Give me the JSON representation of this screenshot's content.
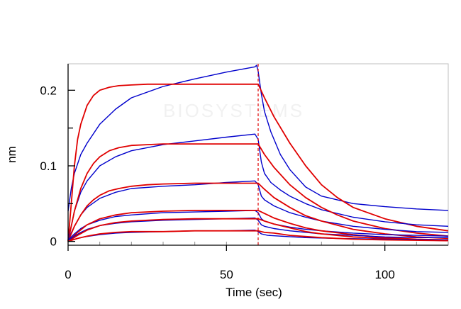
{
  "watermark": "BIOSYSTEMS",
  "chart_data": {
    "type": "line",
    "title": "",
    "xlabel": "Time (sec)",
    "ylabel": "nm",
    "xlim": [
      0,
      120
    ],
    "ylim": [
      -0.005,
      0.235
    ],
    "x_ticks": [
      0,
      50,
      100
    ],
    "x_tick_labels": [
      "0",
      "50",
      "100"
    ],
    "y_ticks": [
      0,
      0.1,
      0.2
    ],
    "y_tick_labels": [
      "0",
      "0.1",
      "0.2"
    ],
    "grid": false,
    "legend": "none",
    "dissociation_start": 60,
    "colors": {
      "measured": "#0000cc",
      "fit": "#e00000",
      "axis": "#000000",
      "frame": "#bfbfbf",
      "grid_ticks": "#8c8c8c"
    },
    "series": [
      {
        "style": "measured",
        "x": [
          0,
          1,
          2,
          4,
          6,
          10,
          15,
          20,
          30,
          40,
          50,
          59,
          59.5,
          60,
          61,
          62,
          64,
          67,
          70,
          75,
          80,
          90,
          100,
          110,
          120
        ],
        "y": [
          0.04,
          0.07,
          0.09,
          0.115,
          0.13,
          0.155,
          0.175,
          0.19,
          0.205,
          0.215,
          0.224,
          0.231,
          0.233,
          0.225,
          0.195,
          0.172,
          0.145,
          0.115,
          0.095,
          0.072,
          0.06,
          0.05,
          0.046,
          0.043,
          0.041
        ]
      },
      {
        "style": "fit",
        "x": [
          0,
          1,
          2,
          3,
          4,
          6,
          8,
          10,
          13,
          16,
          20,
          25,
          30,
          40,
          50,
          60,
          62,
          65,
          70,
          75,
          80,
          85,
          90,
          100,
          110,
          120
        ],
        "y": [
          0,
          0.05,
          0.1,
          0.135,
          0.155,
          0.18,
          0.193,
          0.2,
          0.204,
          0.206,
          0.207,
          0.208,
          0.208,
          0.208,
          0.208,
          0.208,
          0.19,
          0.165,
          0.13,
          0.1,
          0.075,
          0.058,
          0.045,
          0.03,
          0.02,
          0.014
        ]
      },
      {
        "style": "measured",
        "x": [
          0,
          1,
          2,
          4,
          6,
          10,
          15,
          20,
          30,
          40,
          50,
          59,
          60,
          61,
          62,
          64,
          67,
          70,
          75,
          80,
          90,
          100,
          110,
          120
        ],
        "y": [
          0.005,
          0.02,
          0.04,
          0.065,
          0.08,
          0.1,
          0.112,
          0.12,
          0.128,
          0.133,
          0.138,
          0.142,
          0.135,
          0.105,
          0.09,
          0.078,
          0.068,
          0.06,
          0.05,
          0.042,
          0.032,
          0.026,
          0.022,
          0.02
        ]
      },
      {
        "style": "fit",
        "x": [
          0,
          2,
          4,
          6,
          8,
          10,
          13,
          16,
          20,
          25,
          30,
          40,
          50,
          60,
          62,
          65,
          70,
          75,
          80,
          85,
          90,
          100,
          110,
          120
        ],
        "y": [
          0,
          0.04,
          0.07,
          0.09,
          0.103,
          0.112,
          0.12,
          0.124,
          0.127,
          0.128,
          0.129,
          0.129,
          0.129,
          0.129,
          0.115,
          0.098,
          0.075,
          0.058,
          0.045,
          0.035,
          0.027,
          0.017,
          0.011,
          0.007
        ]
      },
      {
        "style": "measured",
        "x": [
          0,
          2,
          4,
          6,
          10,
          15,
          20,
          30,
          40,
          50,
          59,
          60,
          61,
          62,
          65,
          70,
          75,
          80,
          90,
          100,
          110,
          120
        ],
        "y": [
          0.003,
          0.02,
          0.035,
          0.045,
          0.057,
          0.065,
          0.07,
          0.073,
          0.075,
          0.078,
          0.08,
          0.075,
          0.06,
          0.055,
          0.047,
          0.038,
          0.032,
          0.027,
          0.02,
          0.016,
          0.013,
          0.012
        ]
      },
      {
        "style": "fit",
        "x": [
          0,
          2,
          4,
          6,
          8,
          10,
          13,
          16,
          20,
          25,
          30,
          40,
          50,
          60,
          62,
          65,
          70,
          75,
          80,
          90,
          100,
          110,
          120
        ],
        "y": [
          0,
          0.02,
          0.035,
          0.047,
          0.055,
          0.061,
          0.067,
          0.07,
          0.073,
          0.075,
          0.076,
          0.077,
          0.077,
          0.077,
          0.069,
          0.058,
          0.045,
          0.034,
          0.027,
          0.016,
          0.01,
          0.006,
          0.004
        ]
      },
      {
        "style": "measured",
        "x": [
          0,
          2,
          4,
          6,
          10,
          15,
          20,
          30,
          40,
          50,
          59,
          60,
          61,
          62,
          65,
          70,
          75,
          80,
          90,
          100,
          110,
          120
        ],
        "y": [
          0.002,
          0.01,
          0.017,
          0.022,
          0.028,
          0.033,
          0.035,
          0.038,
          0.039,
          0.04,
          0.041,
          0.038,
          0.03,
          0.027,
          0.023,
          0.019,
          0.016,
          0.014,
          0.011,
          0.009,
          0.008,
          0.007
        ]
      },
      {
        "style": "fit",
        "x": [
          0,
          3,
          6,
          10,
          15,
          20,
          30,
          40,
          50,
          60,
          62,
          65,
          70,
          75,
          80,
          90,
          100,
          110,
          120
        ],
        "y": [
          0,
          0.012,
          0.022,
          0.03,
          0.035,
          0.038,
          0.04,
          0.041,
          0.041,
          0.041,
          0.037,
          0.031,
          0.024,
          0.018,
          0.014,
          0.009,
          0.005,
          0.003,
          0.002
        ]
      },
      {
        "style": "measured",
        "x": [
          0,
          2,
          4,
          6,
          10,
          15,
          20,
          30,
          40,
          50,
          59,
          60,
          61,
          62,
          65,
          70,
          80,
          90,
          100,
          110,
          120
        ],
        "y": [
          0.001,
          0.007,
          0.012,
          0.016,
          0.021,
          0.024,
          0.026,
          0.028,
          0.029,
          0.03,
          0.031,
          0.028,
          0.022,
          0.02,
          0.017,
          0.014,
          0.01,
          0.008,
          0.006,
          0.005,
          0.005
        ]
      },
      {
        "style": "fit",
        "x": [
          0,
          3,
          6,
          10,
          15,
          20,
          30,
          40,
          50,
          60,
          62,
          65,
          70,
          75,
          80,
          90,
          100,
          110,
          120
        ],
        "y": [
          0,
          0.008,
          0.015,
          0.021,
          0.025,
          0.027,
          0.029,
          0.03,
          0.03,
          0.03,
          0.027,
          0.023,
          0.018,
          0.013,
          0.01,
          0.006,
          0.004,
          0.002,
          0.001
        ]
      },
      {
        "style": "measured",
        "x": [
          0,
          2,
          5,
          10,
          15,
          20,
          30,
          40,
          50,
          59,
          60,
          61,
          63,
          67,
          75,
          85,
          100,
          120
        ],
        "y": [
          0.0,
          0.003,
          0.006,
          0.009,
          0.011,
          0.012,
          0.013,
          0.014,
          0.014,
          0.015,
          0.013,
          0.01,
          0.008,
          0.007,
          0.005,
          0.004,
          0.003,
          0.002
        ]
      },
      {
        "style": "fit",
        "x": [
          0,
          3,
          6,
          10,
          15,
          20,
          30,
          40,
          50,
          60,
          62,
          65,
          70,
          80,
          90,
          100,
          120
        ],
        "y": [
          0,
          0.004,
          0.007,
          0.01,
          0.012,
          0.013,
          0.013,
          0.014,
          0.014,
          0.014,
          0.012,
          0.011,
          0.008,
          0.005,
          0.003,
          0.002,
          0.001
        ]
      }
    ]
  }
}
